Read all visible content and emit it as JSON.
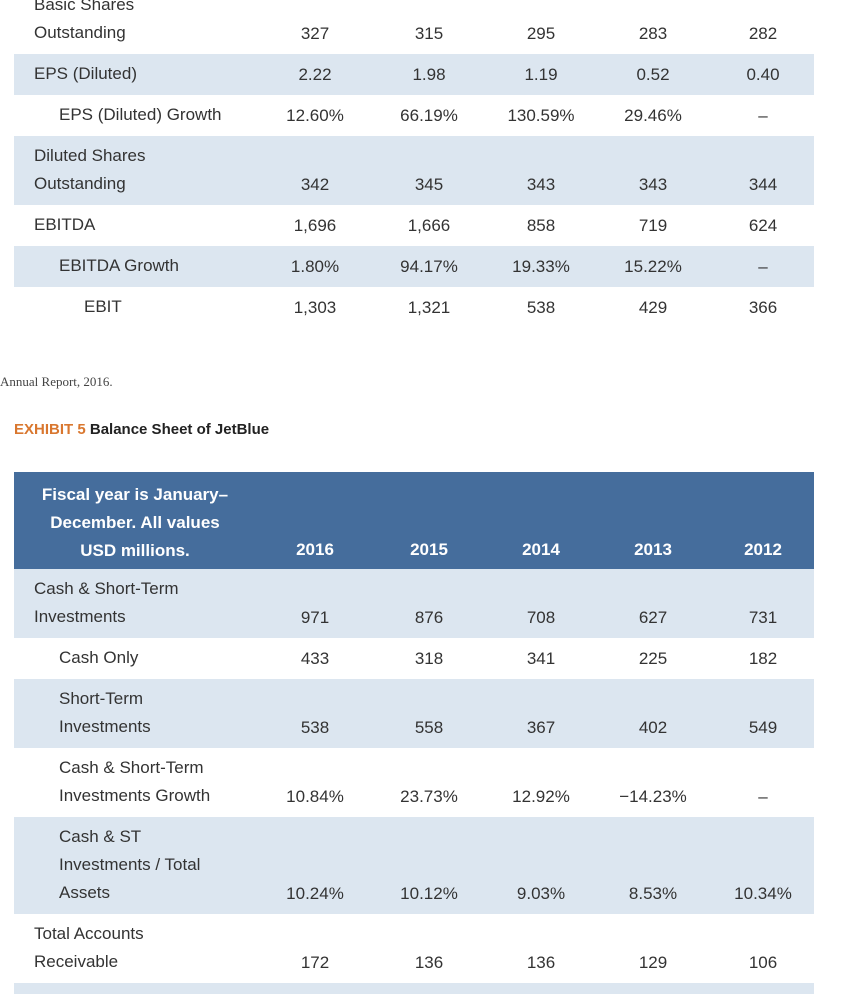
{
  "continued_table": {
    "rows": [
      {
        "label": [
          "Basic Shares",
          "Outstanding"
        ],
        "values": [
          "327",
          "315",
          "295",
          "283",
          "282"
        ]
      },
      {
        "label": [
          "EPS (Diluted)"
        ],
        "values": [
          "2.22",
          "1.98",
          "1.19",
          "0.52",
          "0.40"
        ]
      },
      {
        "label": [
          "EPS (Diluted) Growth"
        ],
        "values": [
          "12.60%",
          "66.19%",
          "130.59%",
          "29.46%",
          "–"
        ]
      },
      {
        "label": [
          "Diluted Shares",
          "Outstanding"
        ],
        "values": [
          "342",
          "345",
          "343",
          "343",
          "344"
        ]
      },
      {
        "label": [
          "EBITDA"
        ],
        "values": [
          "1,696",
          "1,666",
          "858",
          "719",
          "624"
        ]
      },
      {
        "label": [
          "EBITDA Growth"
        ],
        "values": [
          "1.80%",
          "94.17%",
          "19.33%",
          "15.22%",
          "–"
        ]
      },
      {
        "label": [
          "EBIT"
        ],
        "values": [
          "1,303",
          "1,321",
          "538",
          "429",
          "366"
        ]
      }
    ]
  },
  "source": "Annual Report, 2016.",
  "exhibit": {
    "number": "EXHIBIT 5",
    "title": "Balance Sheet of JetBlue"
  },
  "balance_table": {
    "header": {
      "label": [
        "Fiscal year is January–",
        "December. All values",
        "USD millions."
      ],
      "columns": [
        "2016",
        "2015",
        "2014",
        "2013",
        "2012"
      ]
    },
    "rows": [
      {
        "label": [
          "Cash & Short-Term",
          "Investments"
        ],
        "values": [
          "971",
          "876",
          "708",
          "627",
          "731"
        ]
      },
      {
        "label": [
          "Cash Only"
        ],
        "values": [
          "433",
          "318",
          "341",
          "225",
          "182"
        ]
      },
      {
        "label": [
          "Short-Term",
          "Investments"
        ],
        "values": [
          "538",
          "558",
          "367",
          "402",
          "549"
        ]
      },
      {
        "label": [
          "Cash & Short-Term",
          "Investments Growth"
        ],
        "values": [
          "10.84%",
          "23.73%",
          "12.92%",
          "−14.23%",
          "–"
        ]
      },
      {
        "label": [
          "Cash & ST",
          "Investments / Total",
          "Assets"
        ],
        "values": [
          "10.24%",
          "10.12%",
          "9.03%",
          "8.53%",
          "10.34%"
        ]
      },
      {
        "label": [
          "Total Accounts",
          "Receivable"
        ],
        "values": [
          "172",
          "136",
          "136",
          "129",
          "106"
        ]
      }
    ]
  }
}
